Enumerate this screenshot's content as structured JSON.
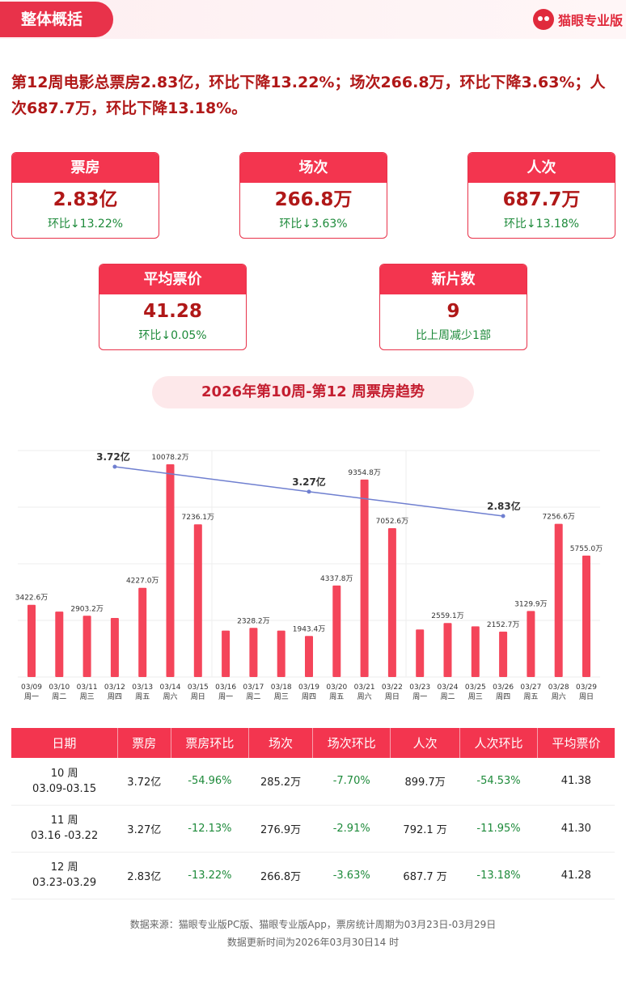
{
  "header": {
    "section_title": "整体概括",
    "brand_name": "猫眼专业版"
  },
  "summary_text": "第12周电影总票房2.83亿，环比下降13.22%；场次266.8万，环比下降3.63%；人次687.7万，环比下降13.18%。",
  "cards": [
    {
      "title": "票房",
      "value": "2.83亿",
      "sub": "环比↓13.22%"
    },
    {
      "title": "场次",
      "value": "266.8万",
      "sub": "环比↓3.63%"
    },
    {
      "title": "人次",
      "value": "687.7万",
      "sub": "环比↓13.18%"
    },
    {
      "title": "平均票价",
      "value": "41.28",
      "sub": "环比↓0.05%"
    },
    {
      "title": "新片数",
      "value": "9",
      "sub": "比上周减少1部"
    }
  ],
  "trend_title": "2026年第10周-第12 周票房趋势",
  "chart_data": {
    "type": "bar",
    "categories": [
      "03/09",
      "03/10",
      "03/11",
      "03/12",
      "03/13",
      "03/14",
      "03/15",
      "03/16",
      "03/17",
      "03/18",
      "03/19",
      "03/20",
      "03/21",
      "03/22",
      "03/23",
      "03/24",
      "03/25",
      "03/26",
      "03/27",
      "03/28",
      "03/29"
    ],
    "weekdays": [
      "周一",
      "周二",
      "周三",
      "周四",
      "周五",
      "周六",
      "周日",
      "周一",
      "周二",
      "周三",
      "周四",
      "周五",
      "周六",
      "周日",
      "周一",
      "周二",
      "周三",
      "周四",
      "周五",
      "周六",
      "周日"
    ],
    "values": [
      3422.6,
      3100,
      2903.2,
      2800,
      4227.0,
      10078.2,
      7236.1,
      2200,
      2328.2,
      2200,
      1943.4,
      4337.8,
      9354.8,
      7052.6,
      2250,
      2559.1,
      2400,
      2152.7,
      3129.9,
      7256.6,
      5755.0
    ],
    "value_labels": [
      "3422.6万",
      "",
      "2903.2万",
      "",
      "4227.0万",
      "10078.2万",
      "7236.1万",
      "",
      "2328.2万",
      "",
      "1943.4万",
      "4337.8万",
      "9354.8万",
      "7052.6万",
      "",
      "2559.1万",
      "",
      "2152.7万",
      "3129.9万",
      "7256.6万",
      "5755.0万"
    ],
    "unit": "万",
    "ylim": [
      0,
      11000
    ],
    "bar_color": "#f4455a",
    "line_series": {
      "points": [
        {
          "x": "03/12",
          "label": "3.72亿"
        },
        {
          "x": "03/19",
          "label": "3.27亿"
        },
        {
          "x": "03/26",
          "label": "2.83亿"
        }
      ],
      "values": [
        3.72,
        3.27,
        2.83
      ],
      "color": "#6f7fd0"
    }
  },
  "table": {
    "headers": [
      "日期",
      "票房",
      "票房环比",
      "场次",
      "场次环比",
      "人次",
      "人次环比",
      "平均票价"
    ],
    "rows": [
      {
        "week": "10 周",
        "range": "03.09-03.15",
        "box": "3.72亿",
        "box_chg": "-54.96%",
        "shows": "285.2万",
        "shows_chg": "-7.70%",
        "adm": "899.7万",
        "adm_chg": "-54.53%",
        "price": "41.38"
      },
      {
        "week": "11 周",
        "range": "03.16 -03.22",
        "box": "3.27亿",
        "box_chg": "-12.13%",
        "shows": "276.9万",
        "shows_chg": "-2.91%",
        "adm": "792.1 万",
        "adm_chg": "-11.95%",
        "price": "41.30"
      },
      {
        "week": "12 周",
        "range": "03.23-03.29",
        "box": "2.83亿",
        "box_chg": "-13.22%",
        "shows": "266.8万",
        "shows_chg": "-3.63%",
        "adm": "687.7 万",
        "adm_chg": "-13.18%",
        "price": "41.28"
      }
    ]
  },
  "footer": {
    "source": "数据来源：猫眼专业版PC版、猫眼专业版App，票房统计周期为03月23日-03月29日",
    "updated": "数据更新时间为2026年03月30日14 时"
  }
}
